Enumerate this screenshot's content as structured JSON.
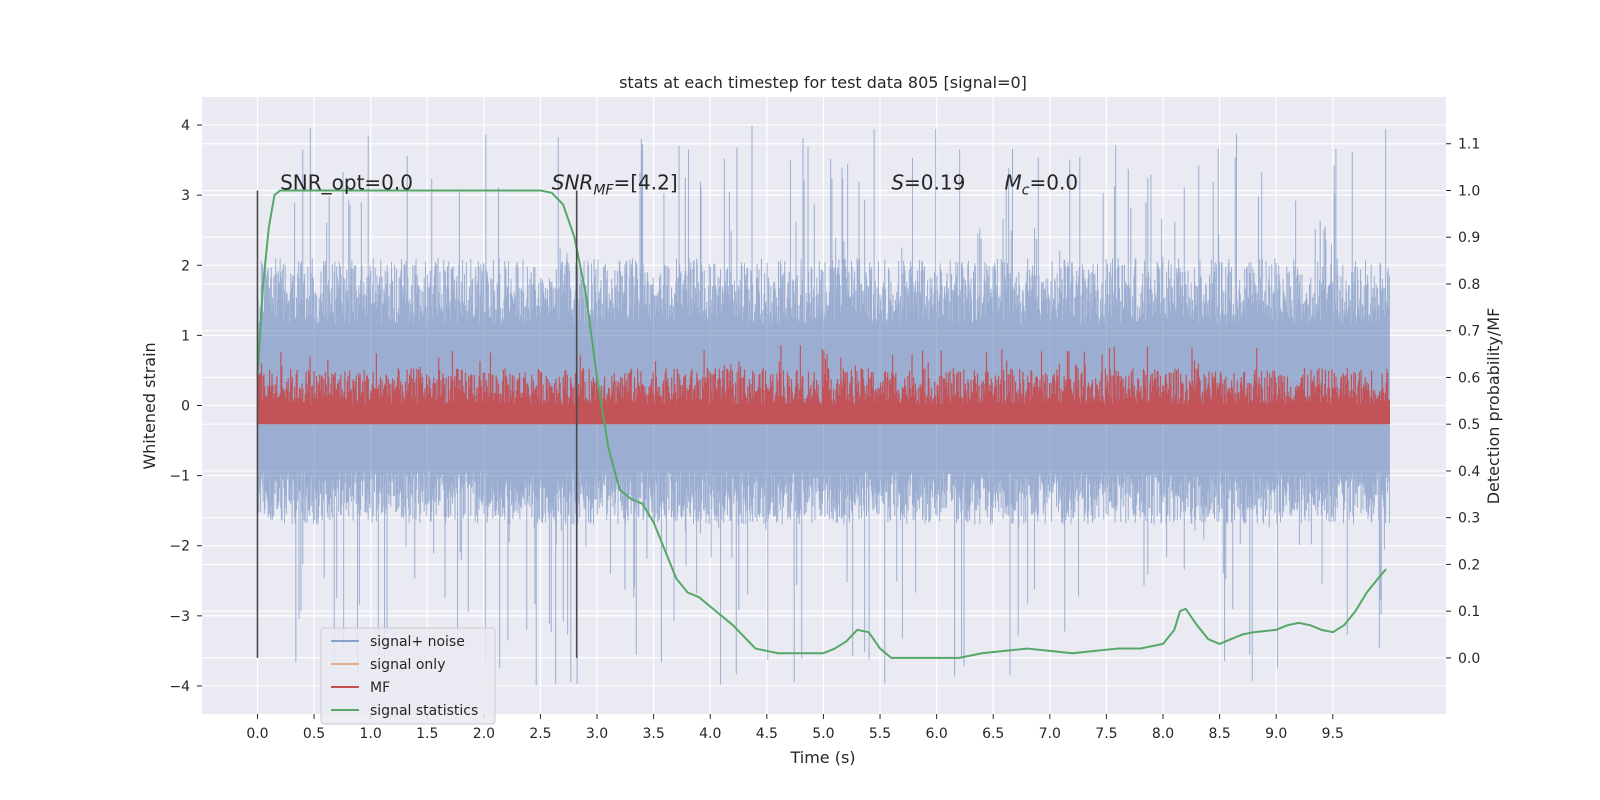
{
  "chart_data": {
    "type": "line",
    "title": "stats at each timestep for test data 805 [signal=0]",
    "xlabel": "Time (s)",
    "ylabel_left": "Whitened strain",
    "ylabel_right": "Detection probability/MF",
    "xlim": [
      -0.49,
      10.5
    ],
    "ylim_left": [
      -4.4,
      4.4
    ],
    "ylim_right": [
      -0.12,
      1.2
    ],
    "x_ticks": [
      0.0,
      0.5,
      1.0,
      1.5,
      2.0,
      2.5,
      3.0,
      3.5,
      4.0,
      4.5,
      5.0,
      5.5,
      6.0,
      6.5,
      7.0,
      7.5,
      8.0,
      8.5,
      9.0,
      9.5
    ],
    "x_tick_labels": [
      "0.0",
      "0.5",
      "1.0",
      "1.5",
      "2.0",
      "2.5",
      "3.0",
      "3.5",
      "4.0",
      "4.5",
      "5.0",
      "5.5",
      "6.0",
      "6.5",
      "7.0",
      "7.5",
      "8.0",
      "8.5",
      "9.0",
      "9.5"
    ],
    "y_left_ticks": [
      -4,
      -3,
      -2,
      -1,
      0,
      1,
      2,
      3,
      4
    ],
    "y_left_tick_labels": [
      "−4",
      "−3",
      "−2",
      "−1",
      "0",
      "1",
      "2",
      "3",
      "4"
    ],
    "y_right_ticks": [
      0.0,
      0.1,
      0.2,
      0.3,
      0.4,
      0.5,
      0.6,
      0.7,
      0.8,
      0.9,
      1.0,
      1.1
    ],
    "y_right_tick_labels": [
      "0.0",
      "0.1",
      "0.2",
      "0.3",
      "0.4",
      "0.5",
      "0.6",
      "0.7",
      "0.8",
      "0.9",
      "1.0",
      "1.1"
    ],
    "grid": true,
    "legend_position": "lower-left",
    "series": [
      {
        "name": "signal+ noise",
        "color": "#4c72b0",
        "axis": "left",
        "style": "noise-band",
        "x_range": [
          0.0,
          10.0
        ],
        "typical_envelope": [
          -1.7,
          2.1
        ],
        "peak_range": [
          -4.0,
          4.0
        ]
      },
      {
        "name": "signal only",
        "color": "#dd8452",
        "axis": "left",
        "style": "flat",
        "x_range": [
          0.0,
          10.0
        ],
        "values": [
          0.0,
          0.0
        ]
      },
      {
        "name": "MF",
        "color": "#c44e52",
        "axis": "right",
        "style": "noise-band",
        "x_range": [
          0.0,
          10.0
        ],
        "typical_envelope": [
          0.5,
          0.62
        ],
        "peak_range": [
          0.5,
          0.67
        ]
      },
      {
        "name": "signal statistics",
        "color": "#55a868",
        "axis": "right",
        "x": [
          0.0,
          0.05,
          0.1,
          0.15,
          0.2,
          0.3,
          0.5,
          1.0,
          1.5,
          2.0,
          2.5,
          2.6,
          2.7,
          2.8,
          2.9,
          3.0,
          3.1,
          3.2,
          3.3,
          3.4,
          3.5,
          3.6,
          3.7,
          3.8,
          3.9,
          4.0,
          4.2,
          4.4,
          4.6,
          4.8,
          5.0,
          5.1,
          5.2,
          5.3,
          5.4,
          5.5,
          5.6,
          5.8,
          6.0,
          6.2,
          6.4,
          6.6,
          6.8,
          7.0,
          7.2,
          7.4,
          7.6,
          7.8,
          8.0,
          8.1,
          8.15,
          8.2,
          8.3,
          8.4,
          8.5,
          8.6,
          8.7,
          8.8,
          9.0,
          9.1,
          9.2,
          9.3,
          9.4,
          9.5,
          9.6,
          9.7,
          9.8,
          9.9,
          9.97
        ],
        "values": [
          0.6,
          0.8,
          0.92,
          0.99,
          1.0,
          1.0,
          1.0,
          1.0,
          1.0,
          1.0,
          1.0,
          0.995,
          0.97,
          0.9,
          0.78,
          0.6,
          0.45,
          0.36,
          0.34,
          0.33,
          0.29,
          0.23,
          0.17,
          0.14,
          0.13,
          0.11,
          0.07,
          0.02,
          0.01,
          0.01,
          0.01,
          0.02,
          0.035,
          0.06,
          0.055,
          0.02,
          0.0,
          0.0,
          0.0,
          0.0,
          0.01,
          0.015,
          0.02,
          0.015,
          0.01,
          0.015,
          0.02,
          0.02,
          0.03,
          0.06,
          0.1,
          0.105,
          0.07,
          0.04,
          0.03,
          0.04,
          0.05,
          0.055,
          0.06,
          0.07,
          0.075,
          0.07,
          0.06,
          0.055,
          0.07,
          0.1,
          0.14,
          0.17,
          0.19
        ]
      }
    ],
    "vertical_markers": [
      {
        "x": 0.0,
        "y_range": [
          0.0,
          1.0
        ],
        "axis": "right"
      },
      {
        "x": 2.82,
        "y_range": [
          0.0,
          1.0
        ],
        "axis": "right"
      }
    ],
    "annotations": [
      {
        "text": "SNR_opt=0.0",
        "x": 0.2,
        "y": 1.0
      },
      {
        "text_base": "SNR",
        "text_sub": "MF",
        "text_rest": "=[4.2]",
        "x": 2.6,
        "y": 1.0
      },
      {
        "text_base": "S",
        "text_sub": "",
        "text_rest": "=0.19",
        "x": 5.6,
        "y": 1.0
      },
      {
        "text_base": "M",
        "text_sub": "c",
        "text_rest": "=0.0",
        "x": 6.6,
        "y": 1.0
      }
    ],
    "colors": {
      "plot_background": "#eaeaf2",
      "grid": "#ffffff",
      "marker": "#4a4a4a"
    }
  }
}
